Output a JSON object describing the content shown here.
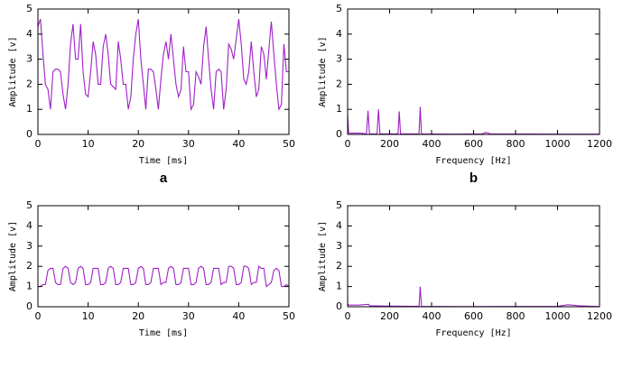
{
  "chart_data": [
    {
      "type": "line",
      "x_label": "Time [ms]",
      "y_label": "Amplitude [v]",
      "label": "a",
      "color": "#a020c8",
      "xlim": [
        0,
        50
      ],
      "ylim": [
        0,
        5
      ],
      "xticks": [
        0,
        10,
        20,
        30,
        40,
        50
      ],
      "yticks": [
        0,
        1,
        2,
        3,
        4,
        5
      ],
      "x": [
        0,
        0.5,
        1,
        1.5,
        2,
        2.5,
        3,
        3.5,
        4,
        4.5,
        5,
        5.5,
        6,
        6.5,
        7,
        7.5,
        8,
        8.5,
        9,
        9.5,
        10,
        10.5,
        11,
        11.5,
        12,
        12.5,
        13,
        13.5,
        14,
        14.5,
        15,
        15.5,
        16,
        16.5,
        17,
        17.5,
        18,
        18.5,
        19,
        19.5,
        20,
        20.5,
        21,
        21.5,
        22,
        22.5,
        23,
        23.5,
        24,
        24.5,
        25,
        25.5,
        26,
        26.5,
        27,
        27.5,
        28,
        28.5,
        29,
        29.5,
        30,
        30.5,
        31,
        31.5,
        32,
        32.5,
        33,
        33.5,
        34,
        34.5,
        35,
        35.5,
        36,
        36.5,
        37,
        37.5,
        38,
        38.5,
        39,
        39.5,
        40,
        40.5,
        41,
        41.5,
        42,
        42.5,
        43,
        43.5,
        44,
        44.5,
        45,
        45.5,
        46,
        46.5,
        47,
        47.5,
        48,
        48.5,
        49,
        49.5,
        50
      ],
      "values": [
        4.3,
        4.6,
        3.2,
        2.0,
        1.8,
        1.0,
        2.5,
        2.6,
        2.6,
        2.5,
        1.6,
        1.0,
        2.0,
        3.6,
        4.4,
        3.0,
        3.0,
        4.4,
        2.5,
        1.6,
        1.5,
        2.5,
        3.7,
        3.2,
        2.0,
        2.0,
        3.5,
        4.0,
        3.2,
        2.0,
        1.9,
        1.8,
        3.7,
        3.0,
        2.0,
        2.0,
        1.0,
        1.5,
        3.0,
        4.0,
        4.6,
        3.0,
        2.0,
        1.0,
        2.6,
        2.6,
        2.5,
        1.8,
        1.0,
        2.2,
        3.2,
        3.7,
        3.0,
        4.0,
        3.0,
        2.0,
        1.5,
        1.8,
        3.5,
        2.5,
        2.5,
        1.0,
        1.2,
        2.5,
        2.3,
        2.0,
        3.5,
        4.3,
        3.0,
        1.8,
        1.0,
        2.5,
        2.6,
        2.5,
        1.0,
        1.8,
        3.6,
        3.4,
        3.0,
        3.8,
        4.6,
        3.6,
        2.2,
        2.0,
        2.5,
        3.7,
        2.5,
        1.5,
        1.8,
        3.5,
        3.2,
        2.2,
        3.4,
        4.5,
        3.2,
        2.0,
        1.0,
        1.2,
        3.6,
        2.5,
        2.5
      ]
    },
    {
      "type": "line",
      "x_label": "Frequency [Hz]",
      "y_label": "Amplitude [v]",
      "label": "b",
      "color": "#a020c8",
      "xlim": [
        0,
        1200
      ],
      "ylim": [
        0,
        5
      ],
      "xticks": [
        0,
        200,
        400,
        600,
        800,
        1000,
        1200
      ],
      "yticks": [
        0,
        1,
        2,
        3,
        4,
        5
      ],
      "x": [
        0,
        5,
        20,
        60,
        90,
        97,
        104,
        140,
        147,
        154,
        240,
        246,
        252,
        340,
        346,
        352,
        500,
        640,
        660,
        680,
        1000,
        1200
      ],
      "values": [
        0.8,
        0.05,
        0.05,
        0.05,
        0.02,
        0.95,
        0.02,
        0.02,
        1.0,
        0.02,
        0.02,
        0.92,
        0.02,
        0.02,
        1.1,
        0.02,
        0.01,
        0.02,
        0.08,
        0.02,
        0.01,
        0.01
      ]
    },
    {
      "type": "line",
      "x_label": "Time [ms]",
      "y_label": "Amplitude [v]",
      "color": "#a020c8",
      "xlim": [
        0,
        50
      ],
      "ylim": [
        0,
        5
      ],
      "xticks": [
        0,
        10,
        20,
        30,
        40,
        50
      ],
      "yticks": [
        0,
        1,
        2,
        3,
        4,
        5
      ],
      "x": [
        0,
        0.5,
        1,
        1.5,
        2,
        2.5,
        3,
        3.5,
        4,
        4.5,
        5,
        5.5,
        6,
        6.5,
        7,
        7.5,
        8,
        8.5,
        9,
        9.5,
        10,
        10.5,
        11,
        11.5,
        12,
        12.5,
        13,
        13.5,
        14,
        14.5,
        15,
        15.5,
        16,
        16.5,
        17,
        17.5,
        18,
        18.5,
        19,
        19.5,
        20,
        20.5,
        21,
        21.5,
        22,
        22.5,
        23,
        23.5,
        24,
        24.5,
        25,
        25.5,
        26,
        26.5,
        27,
        27.5,
        28,
        28.5,
        29,
        29.5,
        30,
        30.5,
        31,
        31.5,
        32,
        32.5,
        33,
        33.5,
        34,
        34.5,
        35,
        35.5,
        36,
        36.5,
        37,
        37.5,
        38,
        38.5,
        39,
        39.5,
        40,
        40.5,
        41,
        41.5,
        42,
        42.5,
        43,
        43.5,
        44,
        44.5,
        45,
        45.5,
        46,
        46.5,
        47,
        47.5,
        48,
        48.5,
        49,
        49.5,
        50
      ],
      "values": [
        1.0,
        1.0,
        1.1,
        1.1,
        1.8,
        1.9,
        1.9,
        1.2,
        1.1,
        1.1,
        1.9,
        2.0,
        1.9,
        1.2,
        1.1,
        1.2,
        1.9,
        2.0,
        1.9,
        1.1,
        1.1,
        1.2,
        1.9,
        1.9,
        1.9,
        1.1,
        1.1,
        1.2,
        1.9,
        2.0,
        1.9,
        1.1,
        1.1,
        1.2,
        1.9,
        1.9,
        1.9,
        1.1,
        1.1,
        1.2,
        1.9,
        2.0,
        1.9,
        1.1,
        1.1,
        1.2,
        1.9,
        1.9,
        1.9,
        1.1,
        1.2,
        1.2,
        1.9,
        2.0,
        1.9,
        1.1,
        1.1,
        1.2,
        1.9,
        1.9,
        1.9,
        1.1,
        1.1,
        1.2,
        1.9,
        2.0,
        1.9,
        1.1,
        1.1,
        1.2,
        1.9,
        1.9,
        1.9,
        1.1,
        1.2,
        1.2,
        2.0,
        2.0,
        1.9,
        1.1,
        1.1,
        1.2,
        2.0,
        2.0,
        1.9,
        1.1,
        1.2,
        1.2,
        2.0,
        1.9,
        1.9,
        1.0,
        1.1,
        1.2,
        1.8,
        1.9,
        1.8,
        1.0,
        1.0,
        1.1,
        1.0
      ]
    },
    {
      "type": "line",
      "x_label": "Frequency [Hz]",
      "y_label": "Amplitude [v]",
      "color": "#a020c8",
      "xlim": [
        0,
        1200
      ],
      "ylim": [
        0,
        5
      ],
      "xticks": [
        0,
        200,
        400,
        600,
        800,
        1000,
        1200
      ],
      "yticks": [
        0,
        1,
        2,
        3,
        4,
        5
      ],
      "x": [
        0,
        5,
        50,
        100,
        105,
        200,
        340,
        346,
        352,
        600,
        1000,
        1050,
        1100,
        1200
      ],
      "values": [
        0.15,
        0.08,
        0.08,
        0.12,
        0.05,
        0.03,
        0.02,
        1.0,
        0.02,
        0.01,
        0.02,
        0.1,
        0.05,
        0.01
      ]
    }
  ]
}
